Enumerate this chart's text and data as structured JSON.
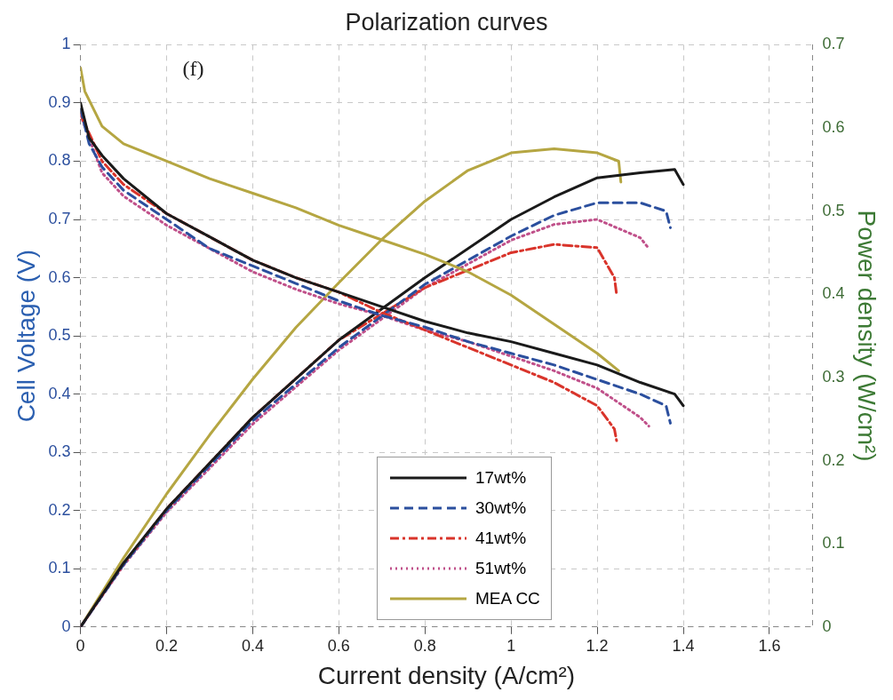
{
  "chart_data": {
    "type": "line",
    "title": "Polarization curves",
    "xlabel": "Current density (A/cm²)",
    "ylabel": "Cell Voltage (V)",
    "y2label": "Power density (W/cm²)",
    "annotations": [
      "(f)"
    ],
    "xlim": [
      0,
      1.7
    ],
    "xticks": [
      0,
      0.2,
      0.4,
      0.6,
      0.8,
      1,
      1.2,
      1.4,
      1.6
    ],
    "ylim": [
      0,
      1
    ],
    "yticks": [
      0,
      0.1,
      0.2,
      0.3,
      0.4,
      0.5,
      0.6,
      0.7,
      0.8,
      0.9,
      1
    ],
    "y2lim": [
      0,
      0.7
    ],
    "y2ticks": [
      0,
      0.1,
      0.2,
      0.3,
      0.4,
      0.5,
      0.6,
      0.7
    ],
    "grid": true,
    "legend": "bottom",
    "marker": "none",
    "series": [
      {
        "name": "17wt%",
        "color": "#1a1a1a",
        "line_style": "solid",
        "x": [
          0,
          0.02,
          0.05,
          0.1,
          0.2,
          0.3,
          0.4,
          0.5,
          0.6,
          0.7,
          0.8,
          0.9,
          1.0,
          1.1,
          1.2,
          1.3,
          1.38,
          1.4
        ],
        "values": [
          0.9,
          0.84,
          0.81,
          0.77,
          0.71,
          0.67,
          0.63,
          0.6,
          0.575,
          0.55,
          0.525,
          0.505,
          0.49,
          0.47,
          0.45,
          0.42,
          0.4,
          0.38
        ]
      },
      {
        "name": "30wt%",
        "color": "#2b4f9e",
        "line_style": "dashed",
        "x": [
          0,
          0.02,
          0.05,
          0.1,
          0.2,
          0.3,
          0.4,
          0.5,
          0.6,
          0.7,
          0.8,
          0.9,
          1.0,
          1.1,
          1.2,
          1.3,
          1.36,
          1.37
        ],
        "values": [
          0.89,
          0.83,
          0.79,
          0.75,
          0.7,
          0.65,
          0.62,
          0.59,
          0.56,
          0.535,
          0.515,
          0.49,
          0.47,
          0.45,
          0.425,
          0.4,
          0.38,
          0.35
        ]
      },
      {
        "name": "41wt%",
        "color": "#d9342b",
        "line_style": "dashdot",
        "x": [
          0,
          0.05,
          0.1,
          0.2,
          0.3,
          0.4,
          0.5,
          0.6,
          0.7,
          0.8,
          0.9,
          1.0,
          1.1,
          1.2,
          1.24,
          1.245
        ],
        "values": [
          0.88,
          0.8,
          0.76,
          0.71,
          0.67,
          0.63,
          0.6,
          0.575,
          0.54,
          0.51,
          0.48,
          0.45,
          0.42,
          0.38,
          0.34,
          0.32
        ]
      },
      {
        "name": "51wt%",
        "color": "#c0508a",
        "line_style": "dotted",
        "x": [
          0,
          0.05,
          0.1,
          0.2,
          0.3,
          0.4,
          0.5,
          0.6,
          0.7,
          0.8,
          0.9,
          1.0,
          1.1,
          1.2,
          1.3,
          1.32
        ],
        "values": [
          0.88,
          0.78,
          0.74,
          0.69,
          0.65,
          0.61,
          0.58,
          0.555,
          0.535,
          0.51,
          0.49,
          0.465,
          0.44,
          0.41,
          0.36,
          0.345
        ]
      },
      {
        "name": "MEA CC",
        "color": "#b5a642",
        "line_style": "solid",
        "x": [
          0,
          0.01,
          0.05,
          0.1,
          0.2,
          0.3,
          0.4,
          0.5,
          0.6,
          0.7,
          0.8,
          0.9,
          1.0,
          1.1,
          1.2,
          1.25
        ],
        "values": [
          0.96,
          0.92,
          0.86,
          0.83,
          0.8,
          0.77,
          0.745,
          0.72,
          0.69,
          0.665,
          0.64,
          0.61,
          0.57,
          0.52,
          0.47,
          0.44
        ]
      },
      {
        "axis": "y2",
        "color": "#1a1a1a",
        "line_style": "solid",
        "x": [
          0,
          0.1,
          0.2,
          0.4,
          0.6,
          0.8,
          1.0,
          1.1,
          1.2,
          1.3,
          1.38,
          1.4
        ],
        "values": [
          0,
          0.077,
          0.142,
          0.252,
          0.345,
          0.42,
          0.49,
          0.517,
          0.54,
          0.546,
          0.55,
          0.532
        ]
      },
      {
        "axis": "y2",
        "color": "#2b4f9e",
        "line_style": "dashed",
        "x": [
          0,
          0.1,
          0.2,
          0.4,
          0.6,
          0.8,
          1.0,
          1.1,
          1.2,
          1.3,
          1.36,
          1.37
        ],
        "values": [
          0,
          0.075,
          0.14,
          0.248,
          0.336,
          0.412,
          0.47,
          0.495,
          0.51,
          0.51,
          0.5,
          0.48
        ]
      },
      {
        "axis": "y2",
        "color": "#d9342b",
        "line_style": "dashdot",
        "x": [
          0,
          0.1,
          0.2,
          0.4,
          0.6,
          0.8,
          1.0,
          1.1,
          1.2,
          1.24,
          1.245
        ],
        "values": [
          0,
          0.076,
          0.142,
          0.252,
          0.345,
          0.408,
          0.45,
          0.46,
          0.456,
          0.42,
          0.4
        ]
      },
      {
        "axis": "y2",
        "color": "#c0508a",
        "line_style": "dotted",
        "x": [
          0,
          0.1,
          0.2,
          0.4,
          0.6,
          0.8,
          1.0,
          1.1,
          1.2,
          1.3,
          1.32
        ],
        "values": [
          0,
          0.074,
          0.138,
          0.244,
          0.333,
          0.408,
          0.465,
          0.484,
          0.49,
          0.468,
          0.455
        ]
      },
      {
        "axis": "y2",
        "color": "#b5a642",
        "line_style": "solid",
        "x": [
          0,
          0.1,
          0.2,
          0.3,
          0.4,
          0.5,
          0.6,
          0.7,
          0.8,
          0.9,
          1.0,
          1.1,
          1.2,
          1.25,
          1.255
        ],
        "values": [
          0,
          0.083,
          0.16,
          0.231,
          0.298,
          0.36,
          0.414,
          0.466,
          0.512,
          0.549,
          0.57,
          0.575,
          0.57,
          0.56,
          0.535
        ]
      }
    ]
  }
}
